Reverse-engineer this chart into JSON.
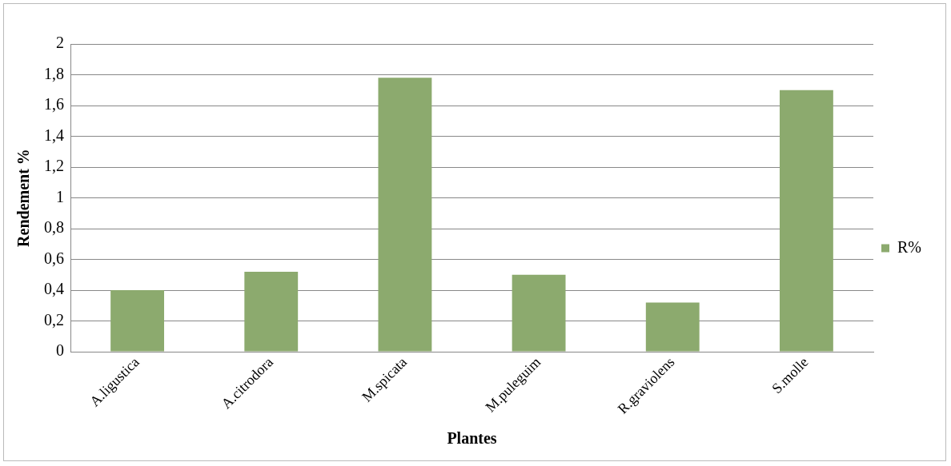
{
  "chart_data": {
    "type": "bar",
    "xlabel": "Plantes",
    "ylabel": "Rendement %",
    "categories": [
      "A.ligustica",
      "A.citrodora",
      "M.spicata",
      "M.puleguim",
      "R.graviolens",
      "S.molle"
    ],
    "series": [
      {
        "name": "R%",
        "color": "#8caa6e",
        "values": [
          0.4,
          0.52,
          1.78,
          0.5,
          0.32,
          1.7
        ]
      }
    ],
    "ylim": [
      0,
      2
    ],
    "yticks": [
      0,
      {
        "value": 0.2,
        "label": "0,2"
      },
      {
        "value": 0.4,
        "label": "0,4"
      },
      {
        "value": 0.6,
        "label": "0,6"
      },
      {
        "value": 0.8,
        "label": "0,8"
      },
      1,
      {
        "value": 1.2,
        "label": "1,2"
      },
      {
        "value": 1.4,
        "label": "1,4"
      },
      {
        "value": 1.6,
        "label": "1,6"
      },
      {
        "value": 1.8,
        "label": "1,8"
      },
      2
    ],
    "grid": "y",
    "legend": "right"
  }
}
